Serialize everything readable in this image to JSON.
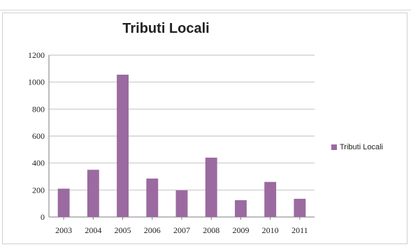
{
  "chart_data": {
    "type": "bar",
    "title": "Tributi Locali",
    "categories": [
      "2003",
      "2004",
      "2005",
      "2006",
      "2007",
      "2008",
      "2009",
      "2010",
      "2011"
    ],
    "series": [
      {
        "name": "Tributi Locali",
        "values": [
          210,
          350,
          1055,
          285,
          198,
          440,
          125,
          260,
          135
        ],
        "color": "#9b6aa0"
      }
    ],
    "ylim": [
      0,
      1200
    ],
    "yticks": [
      "0",
      "200",
      "400",
      "600",
      "800",
      "1000",
      "1200"
    ],
    "grid": true,
    "legend_position": "right"
  }
}
